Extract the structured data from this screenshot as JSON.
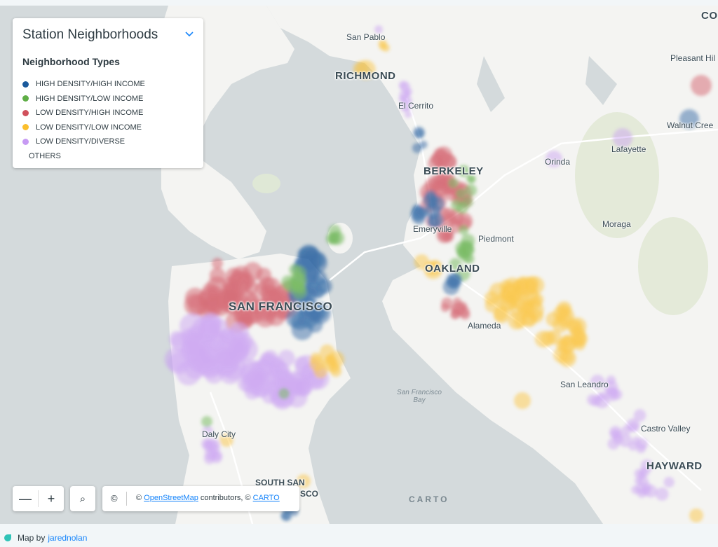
{
  "legend": {
    "title": "Station Neighborhoods",
    "subtitle": "Neighborhood Types",
    "items": [
      {
        "label": "HIGH DENSITY/HIGH INCOME",
        "color": "#1b5a9c"
      },
      {
        "label": "HIGH DENSITY/LOW INCOME",
        "color": "#5fae46"
      },
      {
        "label": "LOW DENSITY/HIGH INCOME",
        "color": "#d0515c"
      },
      {
        "label": "LOW DENSITY/LOW INCOME",
        "color": "#fbbf2d"
      },
      {
        "label": "LOW DENSITY/DIVERSE",
        "color": "#c79af3"
      },
      {
        "label": "OTHERS",
        "color": ""
      }
    ]
  },
  "map_labels": {
    "san_pablo": "San Pablo",
    "richmond": "RICHMOND",
    "el_cerrito": "El Cerrito",
    "berkeley": "BERKELEY",
    "emeryville": "Emeryville",
    "piedmont": "Piedmont",
    "oakland": "OAKLAND",
    "alameda": "Alameda",
    "san_francisco": "SAN FRANCISCO",
    "sf_bay": "San Francisco Bay",
    "san_leandro": "San Leandro",
    "castro_valley": "Castro Valley",
    "hayward": "HAYWARD",
    "daly_city": "Daly City",
    "south_san_1": "SOUTH SAN",
    "south_san_2": "SCO",
    "orinda": "Orinda",
    "lafayette": "Lafayette",
    "moraga": "Moraga",
    "pleasant_hill": "Pleasant Hil",
    "walnut_creek": "Walnut Cree",
    "co": "CO",
    "carto": "CARTO"
  },
  "controls": {
    "zoom_out": "—",
    "zoom_in": "+",
    "search_icon": "⌕",
    "copyright_symbol": "©",
    "attribution_prefix": "© ",
    "osm_link": "OpenStreetMap",
    "attribution_mid": " contributors, © ",
    "carto_link": "CARTO"
  },
  "footer": {
    "prefix": "Map by",
    "author": "jarednolan"
  }
}
